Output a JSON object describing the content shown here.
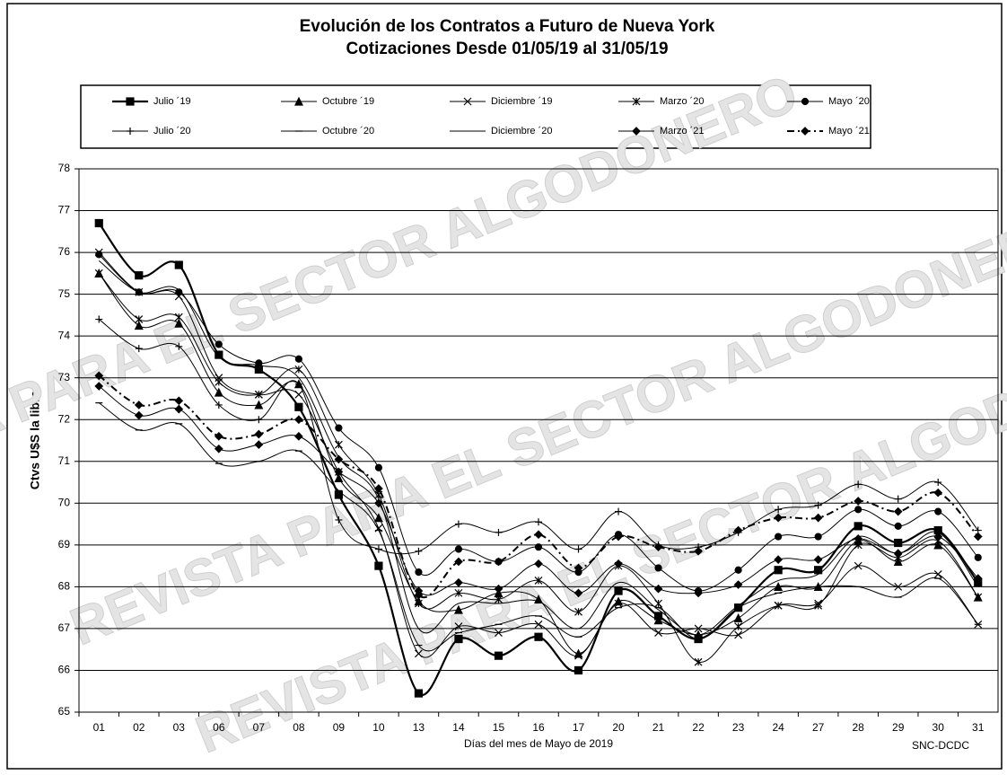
{
  "chart_data": {
    "type": "line",
    "title": "Evolución de los Contratos a Futuro de Nueva York",
    "subtitle": "Cotizaciones Desde 01/05/19 al 31/05/19",
    "y_label": "Ctvs U$S la libra",
    "x_label": "Días del mes de Mayo de 2019",
    "source": "SNC-DCDC",
    "watermark": "REVISTA PARA EL SECTOR ALGODONERO",
    "categories": [
      "01",
      "02",
      "03",
      "06",
      "07",
      "08",
      "09",
      "10",
      "13",
      "14",
      "15",
      "16",
      "17",
      "20",
      "21",
      "22",
      "23",
      "24",
      "27",
      "28",
      "29",
      "30",
      "31"
    ],
    "ylim": [
      65,
      78
    ],
    "yticks": [
      65,
      66,
      67,
      68,
      69,
      70,
      71,
      72,
      73,
      74,
      75,
      76,
      77,
      78
    ],
    "grid": true,
    "series": [
      {
        "name": "Julio ´19",
        "color": "#000",
        "marker": "square",
        "line_width": 2.2,
        "dash": "none",
        "values": [
          76.7,
          75.45,
          75.7,
          73.55,
          73.2,
          72.3,
          70.2,
          68.5,
          65.45,
          66.75,
          66.35,
          66.8,
          66.0,
          67.9,
          67.3,
          66.75,
          67.5,
          68.4,
          68.4,
          69.45,
          69.05,
          69.35,
          68.1
        ]
      },
      {
        "name": "Octubre ´19",
        "color": "#000",
        "marker": "triangle",
        "line_width": 1,
        "dash": "none",
        "values": [
          75.5,
          74.25,
          74.3,
          72.65,
          72.35,
          72.85,
          70.6,
          69.65,
          67.65,
          67.45,
          67.85,
          67.7,
          66.4,
          67.65,
          67.2,
          66.85,
          67.25,
          68.0,
          68.0,
          69.1,
          68.6,
          69.0,
          67.75
        ]
      },
      {
        "name": "Diciembre ´19",
        "color": "#000",
        "marker": "x",
        "line_width": 1,
        "dash": "none",
        "values": [
          76.0,
          75.05,
          74.95,
          73.0,
          72.6,
          72.6,
          70.75,
          69.4,
          66.4,
          67.05,
          66.9,
          67.1,
          66.35,
          67.6,
          66.9,
          67.0,
          66.85,
          67.55,
          67.6,
          68.5,
          68.0,
          68.3,
          67.1
        ]
      },
      {
        "name": "Marzo ´20",
        "color": "#000",
        "marker": "asterisk",
        "line_width": 1,
        "dash": "none",
        "values": [
          75.5,
          74.4,
          74.45,
          72.9,
          72.6,
          73.2,
          71.4,
          70.2,
          67.6,
          67.85,
          67.7,
          68.15,
          67.4,
          68.5,
          67.6,
          66.2,
          67.05,
          67.55,
          67.55,
          69.0,
          68.7,
          69.1,
          67.75
        ]
      },
      {
        "name": "Mayo ´20",
        "color": "#000",
        "marker": "circle",
        "line_width": 1,
        "dash": "none",
        "values": [
          75.95,
          75.05,
          75.05,
          73.8,
          73.35,
          73.45,
          71.8,
          70.85,
          68.35,
          68.9,
          68.6,
          68.95,
          68.35,
          69.25,
          68.45,
          67.9,
          68.4,
          69.2,
          69.2,
          69.85,
          69.45,
          69.8,
          68.7
        ]
      },
      {
        "name": "Julio ´20",
        "color": "#000",
        "marker": "plus",
        "line_width": 1,
        "dash": "none",
        "values": [
          74.4,
          73.7,
          73.75,
          72.35,
          72.0,
          72.85,
          69.6,
          68.9,
          68.85,
          69.5,
          69.3,
          69.55,
          68.9,
          69.8,
          69.0,
          68.95,
          69.3,
          69.85,
          69.95,
          70.45,
          70.1,
          70.5,
          69.35
        ]
      },
      {
        "name": "Octubre ´20",
        "color": "#000",
        "marker": "dash",
        "line_width": 1,
        "dash": "none",
        "values": [
          72.4,
          71.75,
          71.9,
          70.95,
          71.0,
          71.25,
          70.3,
          69.35,
          66.6,
          66.9,
          67.1,
          67.3,
          66.8,
          67.5,
          67.5,
          66.75,
          67.5,
          67.85,
          68.0,
          68.0,
          67.75,
          68.2,
          67.1
        ]
      },
      {
        "name": "Diciembre ´20",
        "color": "#000",
        "marker": "none",
        "line_width": 1,
        "dash": "none",
        "values": [
          75.8,
          75.05,
          75.1,
          73.5,
          73.3,
          73.0,
          71.1,
          70.1,
          67.0,
          67.6,
          67.6,
          67.65,
          67.0,
          68.1,
          67.45,
          66.85,
          67.55,
          68.15,
          68.3,
          69.2,
          68.8,
          69.3,
          68.0
        ]
      },
      {
        "name": "Marzo ´21",
        "color": "#000",
        "marker": "diamond",
        "line_width": 1,
        "dash": "none",
        "values": [
          72.8,
          72.1,
          72.25,
          71.3,
          71.4,
          71.6,
          70.75,
          70.0,
          67.9,
          68.1,
          67.95,
          68.55,
          67.85,
          68.55,
          67.95,
          67.85,
          68.05,
          68.65,
          68.65,
          69.15,
          68.8,
          69.2,
          68.2
        ]
      },
      {
        "name": "Mayo ´21",
        "color": "#000",
        "marker": "diamond",
        "line_width": 2,
        "dash": "8 4 2 4",
        "values": [
          73.05,
          72.35,
          72.45,
          71.6,
          71.65,
          72.0,
          71.05,
          70.35,
          67.8,
          68.6,
          68.6,
          69.25,
          68.45,
          69.2,
          68.95,
          68.85,
          69.35,
          69.65,
          69.65,
          70.05,
          69.8,
          70.25,
          69.2
        ]
      }
    ]
  }
}
